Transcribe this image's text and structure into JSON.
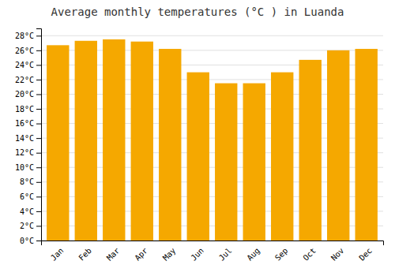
{
  "chart_data": {
    "type": "bar",
    "title": "Average monthly temperatures (°C ) in Luanda",
    "categories": [
      "Jan",
      "Feb",
      "Mar",
      "Apr",
      "May",
      "Jun",
      "Jul",
      "Aug",
      "Sep",
      "Oct",
      "Nov",
      "Dec"
    ],
    "values": [
      26.7,
      27.3,
      27.5,
      27.2,
      26.2,
      23.0,
      21.5,
      21.5,
      23.0,
      24.7,
      26.0,
      26.2
    ],
    "color": "#F5A800",
    "ylim": [
      0,
      29
    ],
    "yticks": [
      {
        "value": 0,
        "label": "0°C"
      },
      {
        "value": 2,
        "label": "2°C"
      },
      {
        "value": 4,
        "label": "4°C"
      },
      {
        "value": 6,
        "label": "6°C"
      },
      {
        "value": 8,
        "label": "8°C"
      },
      {
        "value": 10,
        "label": "10°C"
      },
      {
        "value": 12,
        "label": "12°C"
      },
      {
        "value": 14,
        "label": "14°C"
      },
      {
        "value": 16,
        "label": "16°C"
      },
      {
        "value": 18,
        "label": "18°C"
      },
      {
        "value": 20,
        "label": "20°C"
      },
      {
        "value": 22,
        "label": "22°C"
      },
      {
        "value": 24,
        "label": "24°C"
      },
      {
        "value": 26,
        "label": "26°C"
      },
      {
        "value": 28,
        "label": "28°C"
      }
    ],
    "grid": true
  }
}
